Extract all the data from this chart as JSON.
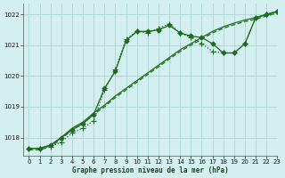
{
  "background_color": "#d4efef",
  "grid_color": "#b0d8d8",
  "line_color": "#1a6b1a",
  "xlabel": "Graphe pression niveau de la mer (hPa)",
  "xlim": [
    -0.5,
    23
  ],
  "ylim": [
    1017.4,
    1022.35
  ],
  "yticks": [
    1018,
    1019,
    1020,
    1021,
    1022
  ],
  "xticks": [
    0,
    1,
    2,
    3,
    4,
    5,
    6,
    7,
    8,
    9,
    10,
    11,
    12,
    13,
    14,
    15,
    16,
    17,
    18,
    19,
    20,
    21,
    22,
    23
  ],
  "s1_x": [
    0,
    1,
    2,
    3,
    4,
    5,
    6,
    7,
    8,
    9,
    10,
    11,
    12,
    13,
    14,
    15,
    16,
    17,
    18,
    19,
    20,
    21,
    22,
    23
  ],
  "s1_y": [
    1017.65,
    1017.65,
    1017.75,
    1018.0,
    1018.3,
    1018.5,
    1018.8,
    1019.05,
    1019.35,
    1019.6,
    1019.85,
    1020.1,
    1020.35,
    1020.6,
    1020.85,
    1021.05,
    1021.25,
    1021.45,
    1021.6,
    1021.72,
    1021.82,
    1021.9,
    1022.0,
    1022.1
  ],
  "s2_x": [
    0,
    1,
    2,
    3,
    4,
    5,
    6,
    7,
    8,
    9,
    10,
    11,
    12,
    13,
    14,
    15,
    16,
    17,
    18,
    19,
    20,
    21,
    22,
    23
  ],
  "s2_y": [
    1017.65,
    1017.65,
    1017.75,
    1018.0,
    1018.3,
    1018.5,
    1018.8,
    1019.05,
    1019.35,
    1019.6,
    1019.85,
    1020.1,
    1020.35,
    1020.6,
    1020.85,
    1021.05,
    1021.25,
    1021.45,
    1021.6,
    1021.72,
    1021.82,
    1021.9,
    1022.0,
    1022.1
  ],
  "s3_x": [
    0,
    1,
    2,
    3,
    4,
    5,
    6,
    7,
    8,
    9,
    10,
    11,
    12,
    13,
    14,
    15,
    16,
    17,
    18,
    19,
    20,
    21,
    22,
    23
  ],
  "s3_y": [
    1017.65,
    1017.65,
    1017.75,
    1018.0,
    1018.25,
    1018.45,
    1018.75,
    1019.6,
    1020.15,
    1021.15,
    1021.45,
    1021.45,
    1021.5,
    1021.65,
    1021.4,
    1021.3,
    1021.25,
    1021.05,
    1020.75,
    1020.75,
    1021.05,
    1021.9,
    1022.0,
    1022.1
  ],
  "s4_x": [
    0,
    1,
    2,
    3,
    4,
    5,
    6,
    7,
    8,
    9,
    10,
    11,
    12,
    13,
    14,
    15,
    16,
    17,
    18,
    19,
    20,
    21,
    22,
    23
  ],
  "s4_y": [
    1017.65,
    1017.65,
    1017.7,
    1017.85,
    1018.15,
    1018.3,
    1018.55,
    1019.55,
    1020.2,
    1021.2,
    1021.45,
    1021.4,
    1021.55,
    1021.7,
    1021.4,
    1021.25,
    1021.05,
    1020.8,
    1020.75,
    1020.75,
    1021.05,
    1021.9,
    1022.0,
    1022.1
  ]
}
